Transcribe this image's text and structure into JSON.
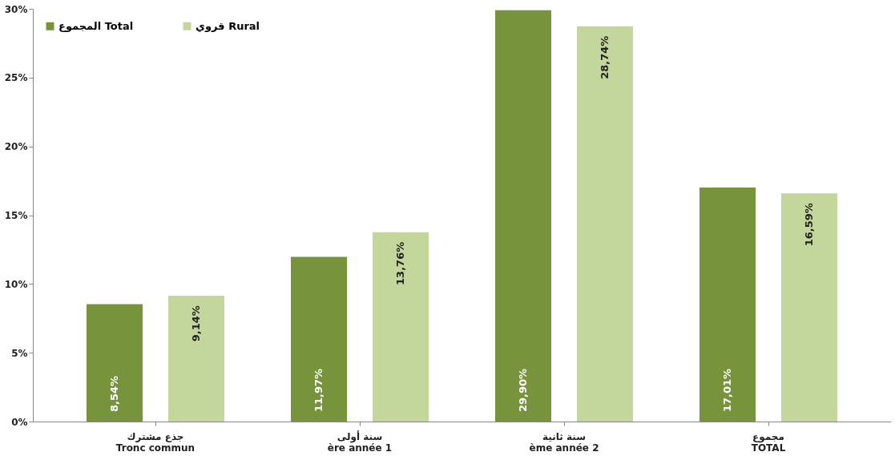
{
  "chart_data": {
    "type": "bar",
    "categories": [
      "جذع مشترك\nTronc commun",
      "سنة أولى\nère année 1",
      "سنة ثانية\nème année 2",
      "مجموع\nTOTAL"
    ],
    "series": [
      {
        "name": "المجموع Total",
        "color": "#77933c",
        "values": [
          8.54,
          11.97,
          29.9,
          17.01
        ],
        "value_labels": [
          "8,54%",
          "11,97%",
          "29,90%",
          "17,01%"
        ]
      },
      {
        "name": "قروي Rural",
        "color": "#c3d69b",
        "values": [
          9.14,
          13.76,
          28.74,
          16.59
        ],
        "value_labels": [
          "9,14%",
          "13,76%",
          "28,74%",
          "16,59%"
        ]
      }
    ],
    "ylim": [
      0,
      30
    ],
    "yticks": [
      {
        "value": 0,
        "label": "0%"
      },
      {
        "value": 5,
        "label": "5%"
      },
      {
        "value": 10,
        "label": "10%"
      },
      {
        "value": 15,
        "label": "15%"
      },
      {
        "value": 20,
        "label": "20%"
      },
      {
        "value": 25,
        "label": "25%"
      },
      {
        "value": 30,
        "label": "30%"
      }
    ],
    "grid": false,
    "legend": "top left"
  }
}
